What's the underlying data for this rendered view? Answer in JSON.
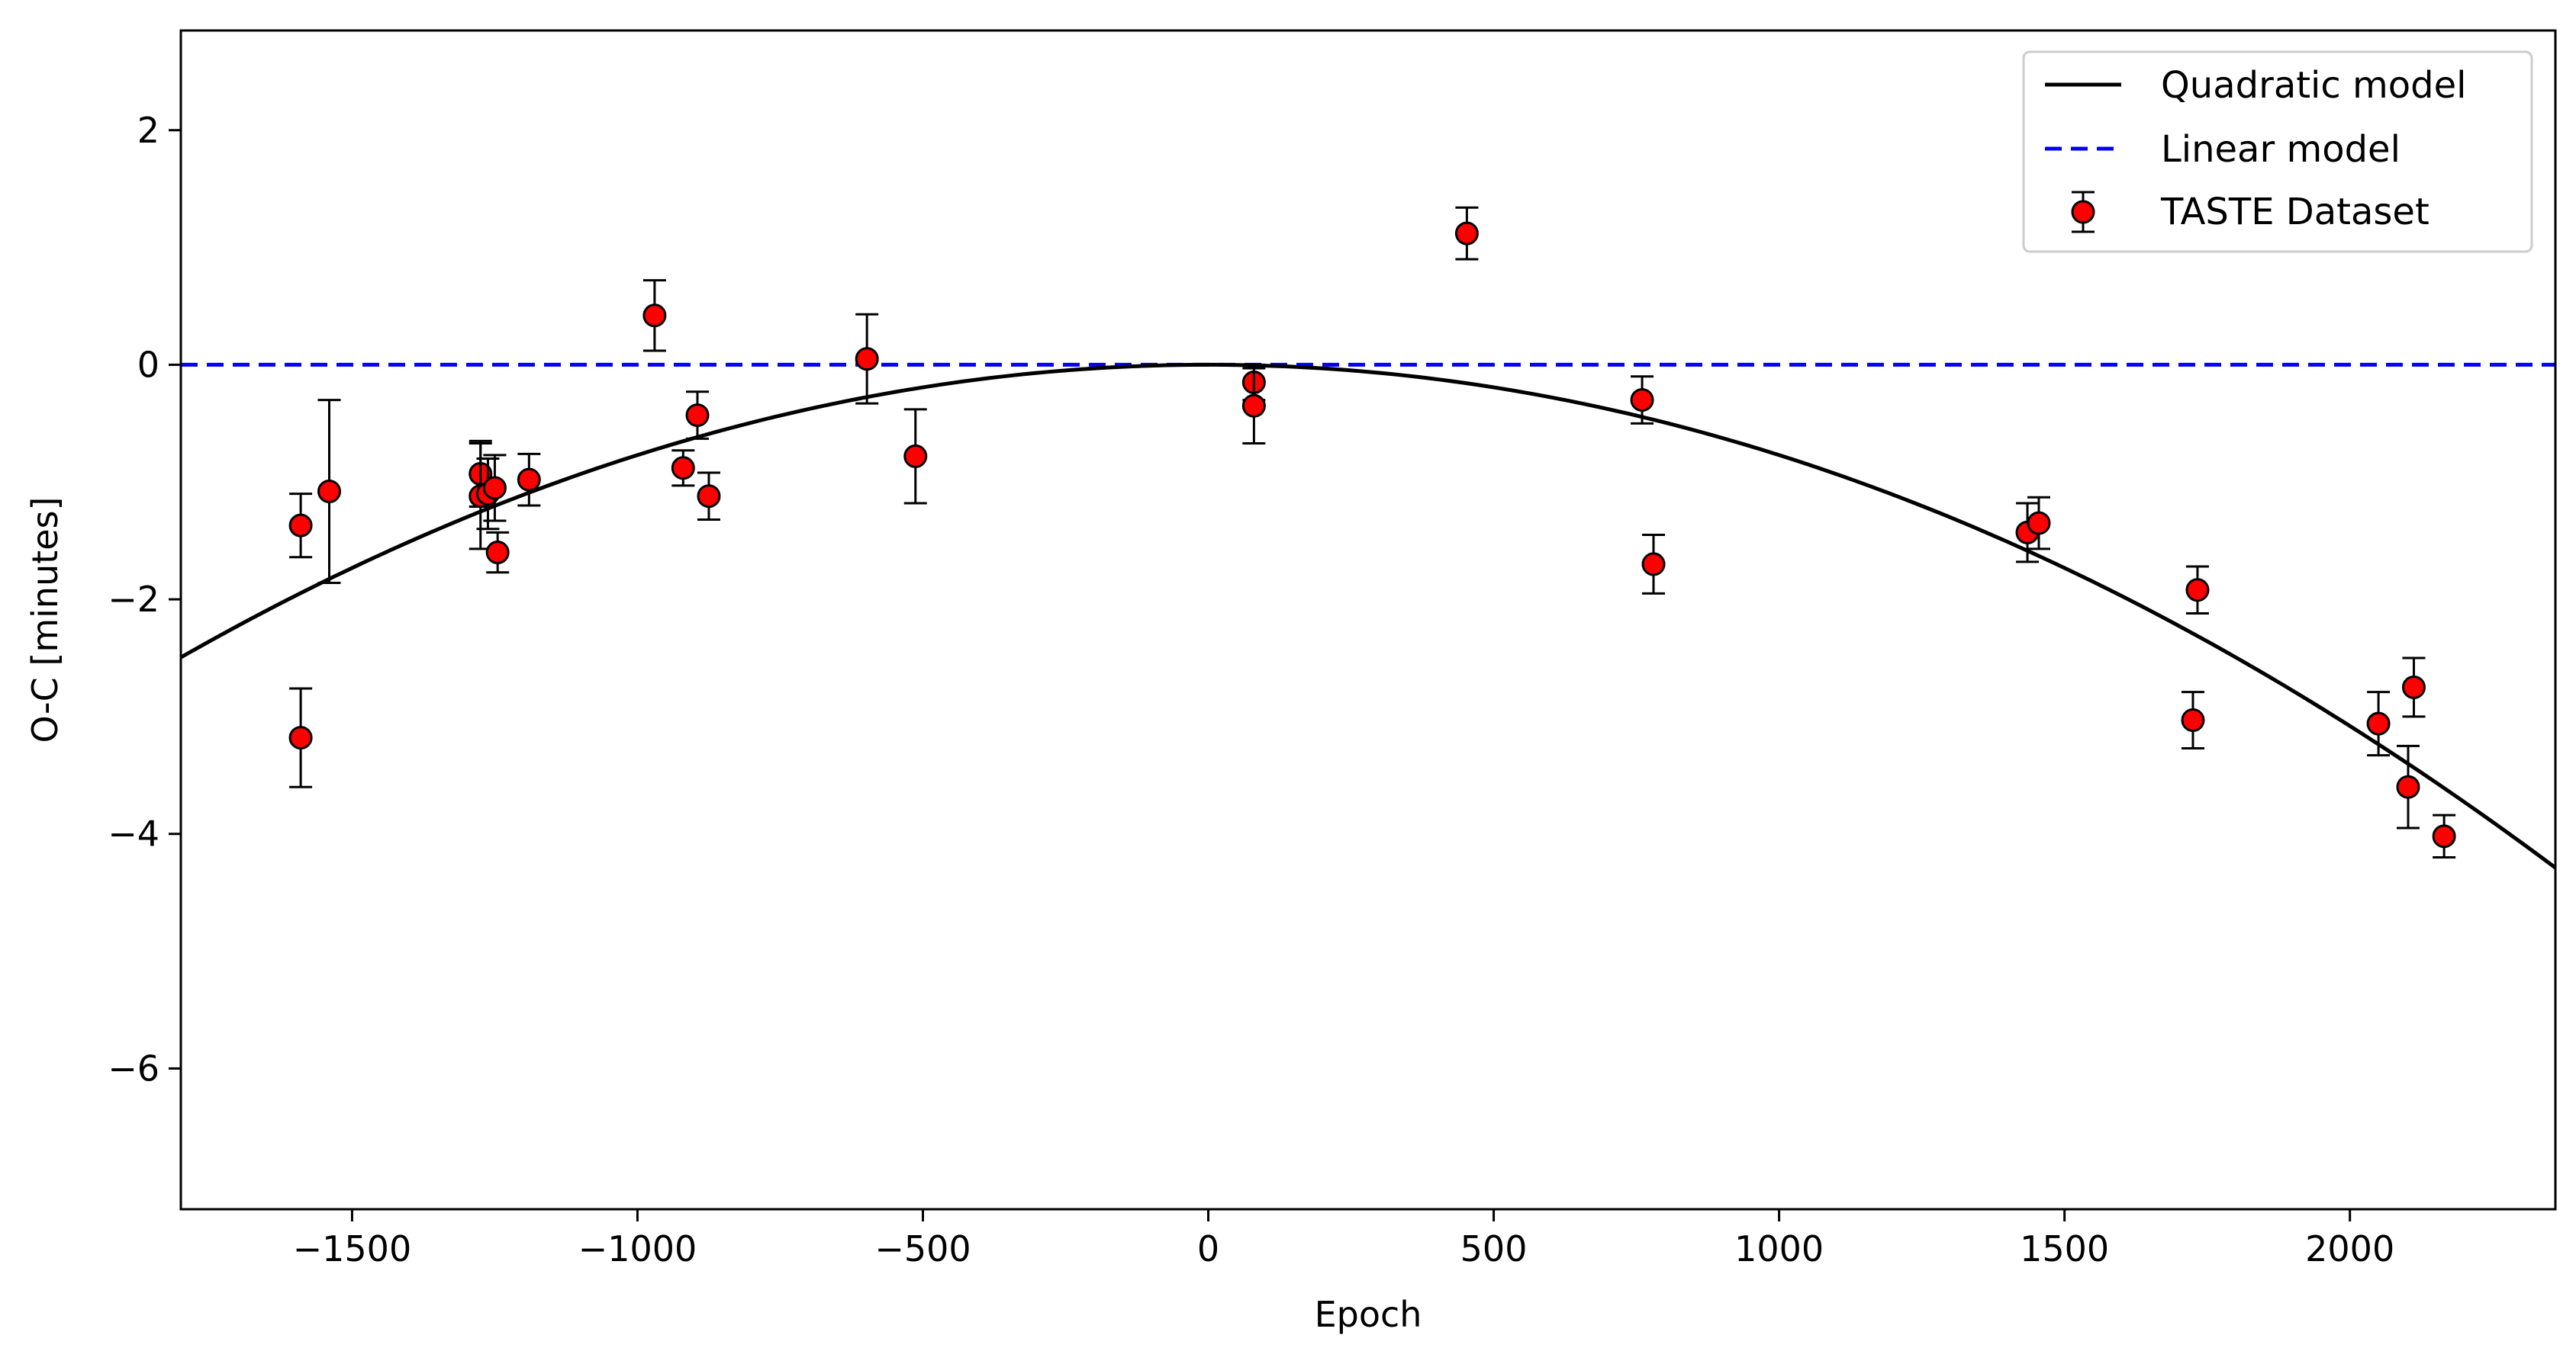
{
  "chart_data": {
    "type": "scatter",
    "title": "",
    "xlabel": "Epoch",
    "ylabel": "O-C [minutes]",
    "xlim": [
      -1800,
      2360
    ],
    "ylim": [
      -7.2,
      2.85
    ],
    "xticks": [
      -1500,
      -1000,
      -500,
      0,
      500,
      1000,
      1500,
      2000
    ],
    "yticks": [
      2,
      0,
      -2,
      -4,
      -6
    ],
    "legend_position": "top-right",
    "grid": false,
    "legend": {
      "quadratic": "Quadratic model",
      "linear": "Linear model",
      "dataset": "TASTE Dataset"
    },
    "colors": {
      "quadratic": "#000000",
      "linear": "#0000ff",
      "marker_fill": "#ff0000",
      "marker_edge": "#000000"
    },
    "quadratic_model": {
      "a": -7.7e-07,
      "b": 0,
      "c": 0
    },
    "linear_model": {
      "slope": 0,
      "intercept": 0
    },
    "series": [
      {
        "name": "TASTE Dataset",
        "points": [
          {
            "x": -1590,
            "y": -1.37,
            "err": 0.27
          },
          {
            "x": -1590,
            "y": -3.18,
            "err": 0.42
          },
          {
            "x": -1540,
            "y": -1.08,
            "err": 0.78
          },
          {
            "x": -1275,
            "y": -0.93,
            "err": 0.28
          },
          {
            "x": -1275,
            "y": -1.12,
            "err": 0.45
          },
          {
            "x": -1262,
            "y": -1.1,
            "err": 0.3
          },
          {
            "x": -1250,
            "y": -1.05,
            "err": 0.28
          },
          {
            "x": -1245,
            "y": -1.6,
            "err": 0.17
          },
          {
            "x": -1190,
            "y": -0.98,
            "err": 0.22
          },
          {
            "x": -970,
            "y": 0.42,
            "err": 0.3
          },
          {
            "x": -920,
            "y": -0.88,
            "err": 0.15
          },
          {
            "x": -895,
            "y": -0.43,
            "err": 0.2
          },
          {
            "x": -875,
            "y": -1.12,
            "err": 0.2
          },
          {
            "x": -598,
            "y": 0.05,
            "err": 0.38
          },
          {
            "x": -513,
            "y": -0.78,
            "err": 0.4
          },
          {
            "x": 80,
            "y": -0.15,
            "err": 0.15
          },
          {
            "x": 80,
            "y": -0.35,
            "err": 0.32
          },
          {
            "x": 453,
            "y": 1.12,
            "err": 0.22
          },
          {
            "x": 760,
            "y": -0.3,
            "err": 0.2
          },
          {
            "x": 780,
            "y": -1.7,
            "err": 0.25
          },
          {
            "x": 1435,
            "y": -1.43,
            "err": 0.25
          },
          {
            "x": 1455,
            "y": -1.35,
            "err": 0.22
          },
          {
            "x": 1725,
            "y": -3.03,
            "err": 0.24
          },
          {
            "x": 1733,
            "y": -1.92,
            "err": 0.2
          },
          {
            "x": 2050,
            "y": -3.06,
            "err": 0.27
          },
          {
            "x": 2102,
            "y": -3.6,
            "err": 0.35
          },
          {
            "x": 2112,
            "y": -2.75,
            "err": 0.25
          },
          {
            "x": 2165,
            "y": -4.02,
            "err": 0.18
          }
        ]
      }
    ]
  }
}
